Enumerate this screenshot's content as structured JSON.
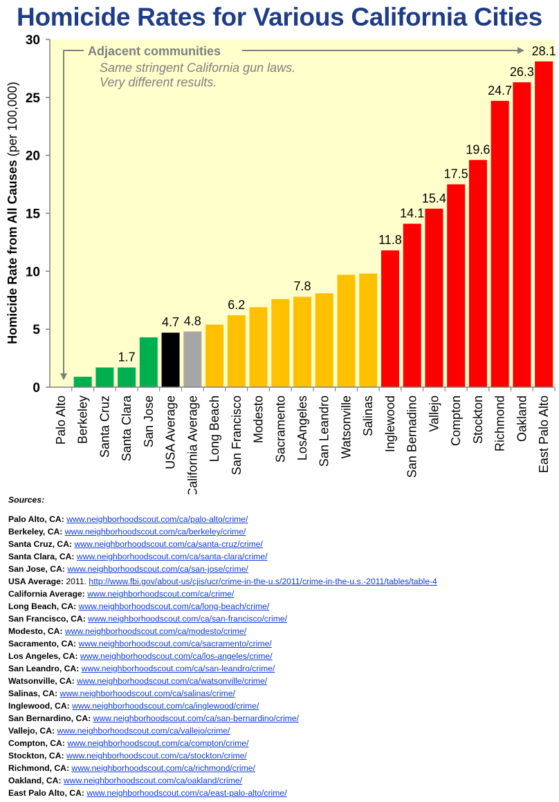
{
  "title": "Homicide Rates for Various California Cities",
  "chart_data": {
    "type": "bar",
    "title": "Homicide Rates for Various California Cities",
    "ylabel_bold": "Homicide Rate from All Causes",
    "ylabel_normal": "(per 100,000)",
    "ylim": [
      0,
      30
    ],
    "yticks": [
      "0",
      "5",
      "10",
      "15",
      "20",
      "25",
      "30"
    ],
    "grid": false,
    "categories": [
      "Palo Alto",
      "Berkeley",
      "Santa Cruz",
      "Santa Clara",
      "San Jose",
      "USA Average",
      "California Average",
      "Long Beach",
      "San Francisco",
      "Modesto",
      "Sacramento",
      "LosAngeles",
      "San Leandro",
      "Watsonville",
      "Salinas",
      "Inglewood",
      "San Bernadino",
      "Vallejo",
      "Compton",
      "Stockton",
      "Richmond",
      "Oakland",
      "East Palo Alto"
    ],
    "values": [
      0,
      0.9,
      1.7,
      1.7,
      4.3,
      4.7,
      4.8,
      5.4,
      6.2,
      6.9,
      7.6,
      7.8,
      8.1,
      9.7,
      9.8,
      11.8,
      14.1,
      15.4,
      17.5,
      19.6,
      24.7,
      26.3,
      28.1
    ],
    "data_labels": [
      "",
      "",
      "",
      "1.7",
      "",
      "4.7",
      "4.8",
      "",
      "6.2",
      "",
      "",
      "7.8",
      "",
      "",
      "",
      "11.8",
      "14.1",
      "15.4",
      "17.5",
      "19.6",
      "24.7",
      "26.3",
      "28.1"
    ],
    "bar_colors": [
      "#00b050",
      "#00b050",
      "#00b050",
      "#00b050",
      "#00b050",
      "#000000",
      "#a6a6a6",
      "#ffc000",
      "#ffc000",
      "#ffc000",
      "#ffc000",
      "#ffc000",
      "#ffc000",
      "#ffc000",
      "#ffc000",
      "#ff0000",
      "#ff0000",
      "#ff0000",
      "#ff0000",
      "#ff0000",
      "#ff0000",
      "#ff0000",
      "#ff0000"
    ],
    "annotation": {
      "heading": "Adjacent communities",
      "lines": [
        "Same stringent California gun laws.",
        "Very different results."
      ]
    }
  },
  "colors": {
    "plot_background": "#ffffcc",
    "title": "#1f3c88",
    "annotation": "#7f7f7f",
    "link": "#0b3bd6"
  },
  "sources": {
    "heading": "Sources:",
    "items": [
      {
        "name": "Palo Alto, CA:",
        "pre": "",
        "url": "www.neighborhoodscout.com/ca/palo-alto/crime/"
      },
      {
        "name": "Berkeley, CA:",
        "pre": "",
        "url": "www.neighborhoodscout.com/ca/berkeley/crime/"
      },
      {
        "name": "Santa Cruz, CA:",
        "pre": "",
        "url": "www.neighborhoodscout.com/ca/santa-cruz/crime/"
      },
      {
        "name": "Santa Clara, CA:",
        "pre": "",
        "url": "www.neighborhoodscout.com/ca/santa-clara/crime/"
      },
      {
        "name": "San Jose, CA:",
        "pre": "",
        "url": "www.neighborhoodscout.com/ca/san-jose/crime/"
      },
      {
        "name": "USA Average:",
        "pre": "2011.",
        "url": "http://www.fbi.gov/about-us/cjis/ucr/crime-in-the-u.s/2011/crime-in-the-u.s.-2011/tables/table-4"
      },
      {
        "name": "California Average:",
        "pre": "",
        "url": "www.neighborhoodscout.com/ca/crime/"
      },
      {
        "name": "Long Beach, CA:",
        "pre": "",
        "url": "www.neighborhoodscout.com/ca/long-beach/crime/"
      },
      {
        "name": "San Francisco, CA:",
        "pre": "",
        "url": "www.neighborhoodscout.com/ca/san-francisco/crime/"
      },
      {
        "name": "Modesto, CA:",
        "pre": "",
        "url": "www.neighborhoodscout.com/ca/modesto/crime/"
      },
      {
        "name": "Sacramento, CA:",
        "pre": "",
        "url": "www.neighborhoodscout.com/ca/sacramento/crime/"
      },
      {
        "name": "Los Angeles, CA:",
        "pre": "",
        "url": "www.neighborhoodscout.com/ca/los-angeles/crime/"
      },
      {
        "name": "San Leandro, CA:",
        "pre": "",
        "url": "www.neighborhoodscout.com/ca/san-leandro/crime/"
      },
      {
        "name": "Watsonville, CA:",
        "pre": "",
        "url": "www.neighborhoodscout.com/ca/watsonville/crime/"
      },
      {
        "name": "Salinas, CA:",
        "pre": "",
        "url": "www.neighborhoodscout.com/ca/salinas/crime/"
      },
      {
        "name": "Inglewood, CA:",
        "pre": "",
        "url": "www.neighborhoodscout.com/ca/inglewood/crime/"
      },
      {
        "name": "San Bernardino, CA:",
        "pre": "",
        "url": "www.neighborhoodscout.com/ca/san-bernardino/crime/"
      },
      {
        "name": "Vallejo, CA:",
        "pre": "",
        "url": "www.neighborhoodscout.com/ca/vallejo/crime/"
      },
      {
        "name": "Compton, CA:",
        "pre": "",
        "url": "www.neighborhoodscout.com/ca/compton/crime/"
      },
      {
        "name": "Stockton, CA:",
        "pre": "",
        "url": "www.neighborhoodscout.com/ca/stockton/crime/"
      },
      {
        "name": "Richmond, CA:",
        "pre": "",
        "url": "www.neighborhoodscout.com/ca/richmond/crime/"
      },
      {
        "name": "Oakland, CA:",
        "pre": "",
        "url": "www.neighborhoodscout.com/ca/oakland/crime/"
      },
      {
        "name": "East Palo Alto, CA:",
        "pre": "",
        "url": "www.neighborhoodscout.com/ca/east-palo-alto/crime/"
      }
    ]
  }
}
